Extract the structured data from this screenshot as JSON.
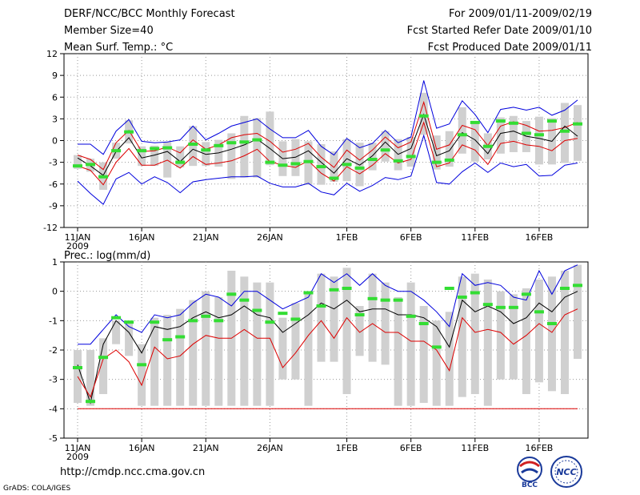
{
  "header": {
    "title": "DERF/NCC/BCC Monthly Forecast",
    "member_size": "Member Size=40",
    "variable": "Mean Surf. Temp.: °C",
    "period": "For 2009/01/11-2009/02/19",
    "fcst_started": "Fcst Started Refer Date 2009/01/10",
    "fcst_produced": "Fcst Produced Date 2009/01/11"
  },
  "footer": {
    "url": "http://cmdp.ncc.cma.gov.cn",
    "credit": "GrADS: COLA/IGES"
  },
  "logos": {
    "bcc": "BCC",
    "ncc": "NCC"
  },
  "colors": {
    "box": "#d0d0d0",
    "median": "#000000",
    "upper": "#0000dd",
    "lower": "#dd0000",
    "observed": "#33dd33",
    "grid": "#999999"
  },
  "chart_data": [
    {
      "type": "line",
      "title": "Mean Surf. Temp.: °C",
      "ylim": [
        -12,
        12
      ],
      "yticks": [
        -12,
        -9,
        -6,
        -3,
        0,
        3,
        6,
        9,
        12
      ],
      "xticks": [
        "11JAN",
        "16JAN",
        "21JAN",
        "26JAN",
        "1FEB",
        "6FEB",
        "11FEB",
        "16FEB"
      ],
      "xticks_day": [
        0,
        5,
        10,
        15,
        21,
        26,
        31,
        36
      ],
      "year_label": "2009",
      "days": 40,
      "series": [
        {
          "name": "upper",
          "values": [
            -0.5,
            -0.5,
            -1.9,
            1.3,
            2.9,
            -0.1,
            -0.3,
            -0.2,
            0.1,
            2.0,
            0.1,
            1.0,
            2.0,
            2.5,
            3.0,
            1.6,
            0.4,
            0.4,
            1.4,
            -0.8,
            -2.0,
            0.3,
            -1.0,
            -0.4,
            1.4,
            -0.3,
            0.5,
            8.3,
            1.7,
            2.3,
            5.5,
            3.6,
            1.1,
            4.3,
            4.6,
            4.2,
            4.6,
            3.5,
            4.2,
            5.6
          ]
        },
        {
          "name": "upper_mid",
          "values": [
            -2.0,
            -2.6,
            -4.0,
            -0.3,
            1.4,
            -1.5,
            -1.4,
            -0.9,
            -1.7,
            0.1,
            -1.2,
            -0.6,
            0.4,
            0.8,
            1.0,
            -0.1,
            -1.6,
            -1.2,
            -0.4,
            -2.3,
            -3.7,
            -1.3,
            -2.7,
            -1.3,
            0.5,
            -1.0,
            -0.2,
            5.3,
            -1.2,
            -0.6,
            2.1,
            1.5,
            -0.7,
            2.0,
            2.6,
            2.1,
            1.3,
            1.4,
            1.8,
            2.5
          ]
        },
        {
          "name": "median",
          "values": [
            -2.4,
            -3.5,
            -4.8,
            -1.5,
            0.4,
            -2.4,
            -2.0,
            -1.5,
            -2.9,
            -1.2,
            -1.9,
            -1.7,
            -1.2,
            -0.6,
            0.2,
            -1.1,
            -2.5,
            -2.3,
            -1.4,
            -3.0,
            -4.5,
            -2.5,
            -3.4,
            -2.1,
            -0.2,
            -1.9,
            -1.1,
            3.6,
            -2.1,
            -1.4,
            1.1,
            0.1,
            -1.8,
            1.0,
            1.3,
            0.6,
            0.3,
            -0.1,
            2.0,
            0.6
          ]
        },
        {
          "name": "lower_mid",
          "values": [
            -3.5,
            -4.1,
            -6.1,
            -3.0,
            -1.1,
            -3.4,
            -3.4,
            -2.7,
            -3.8,
            -2.2,
            -3.3,
            -3.1,
            -2.8,
            -2.1,
            -1.2,
            -2.9,
            -3.4,
            -3.7,
            -2.8,
            -4.5,
            -5.6,
            -3.6,
            -4.6,
            -3.4,
            -1.8,
            -3.1,
            -2.6,
            2.5,
            -3.6,
            -3.1,
            -0.6,
            -1.3,
            -3.3,
            -0.4,
            -0.1,
            -0.6,
            -0.8,
            -1.4,
            0.0,
            0.3
          ]
        },
        {
          "name": "lower",
          "values": [
            -5.6,
            -7.3,
            -8.8,
            -5.3,
            -4.4,
            -6.0,
            -5.0,
            -5.8,
            -7.2,
            -5.7,
            -5.4,
            -5.2,
            -5.0,
            -5.0,
            -4.9,
            -5.9,
            -6.4,
            -6.4,
            -5.9,
            -7.1,
            -7.5,
            -5.9,
            -7.0,
            -6.2,
            -5.1,
            -5.4,
            -4.9,
            0.7,
            -5.8,
            -6.0,
            -4.3,
            -3.1,
            -4.4,
            -3.1,
            -3.6,
            -3.3,
            -4.9,
            -4.8,
            -3.4,
            -3.1
          ]
        },
        {
          "name": "observed",
          "values": [
            -3.5,
            -3.3,
            -5.0,
            -1.4,
            1.2,
            -1.4,
            -1.1,
            -1.0,
            -3.0,
            -0.5,
            -1.3,
            -0.7,
            -0.3,
            -0.2,
            0.1,
            -3.0,
            -3.4,
            -3.2,
            -2.9,
            -3.6,
            -5.2,
            -3.3,
            -3.8,
            -2.6,
            -1.3,
            -2.8,
            -2.2,
            3.4,
            -3.0,
            -2.7,
            0.8,
            2.5,
            -0.8,
            2.7,
            2.4,
            1.0,
            0.8,
            2.7,
            1.3,
            2.3
          ]
        },
        {
          "name": "box_top",
          "values": [
            -2.0,
            -2.5,
            -3.0,
            -0.3,
            2.8,
            -0.8,
            -0.7,
            -0.2,
            -0.8,
            2.0,
            -0.2,
            0.1,
            1.0,
            3.4,
            3.1,
            4.0,
            -0.1,
            0.2,
            -0.1,
            -0.5,
            -1.5,
            0.2,
            -0.3,
            -0.3,
            1.3,
            0.2,
            0.5,
            6.6,
            0.7,
            1.3,
            4.6,
            2.6,
            1.0,
            3.2,
            3.4,
            2.7,
            3.3,
            3.1,
            5.2,
            4.9
          ]
        },
        {
          "name": "box_bottom",
          "values": [
            -3.9,
            -4.3,
            -6.8,
            -2.5,
            -0.4,
            -3.5,
            -3.5,
            -5.1,
            -3.7,
            -3.5,
            -3.5,
            -3.6,
            -5.3,
            -5.1,
            -5.1,
            -3.4,
            -4.9,
            -4.9,
            -6.1,
            -6.1,
            -5.7,
            -5.6,
            -6.3,
            -4.1,
            -2.9,
            -4.1,
            -3.6,
            0.8,
            -4.0,
            -3.6,
            -1.8,
            -2.9,
            -2.6,
            -1.8,
            -1.6,
            -1.6,
            -3.3,
            -3.3,
            -3.1,
            -2.8
          ]
        }
      ]
    },
    {
      "type": "line",
      "title": "Prec.: log(mm/d)",
      "ylim": [
        -5,
        1
      ],
      "yticks": [
        -5,
        -4,
        -3,
        -2,
        -1,
        0,
        1
      ],
      "xticks": [
        "11JAN",
        "16JAN",
        "21JAN",
        "26JAN",
        "1FEB",
        "6FEB",
        "11FEB",
        "16FEB"
      ],
      "xticks_day": [
        0,
        5,
        10,
        15,
        21,
        26,
        31,
        36
      ],
      "year_label": "2009",
      "days": 40,
      "series": [
        {
          "name": "upper",
          "values": [
            -1.8,
            -1.8,
            -1.3,
            -0.8,
            -1.2,
            -1.4,
            -0.8,
            -0.9,
            -0.8,
            -0.4,
            -0.1,
            -0.2,
            -0.5,
            0.0,
            0.0,
            -0.3,
            -0.6,
            -0.4,
            -0.2,
            0.6,
            0.3,
            0.6,
            0.2,
            0.6,
            0.2,
            0.0,
            0.0,
            -0.3,
            -0.7,
            -1.2,
            0.6,
            0.2,
            0.3,
            0.2,
            -0.2,
            -0.3,
            0.7,
            -0.1,
            0.7,
            0.9
          ]
        },
        {
          "name": "median",
          "values": [
            -2.5,
            -3.8,
            -1.8,
            -1.0,
            -1.4,
            -2.1,
            -1.2,
            -1.3,
            -1.2,
            -0.9,
            -0.7,
            -0.9,
            -0.8,
            -0.5,
            -0.8,
            -0.9,
            -1.4,
            -1.1,
            -0.8,
            -0.4,
            -0.6,
            -0.3,
            -0.7,
            -0.6,
            -0.6,
            -0.8,
            -0.8,
            -0.9,
            -1.2,
            -1.9,
            -0.3,
            -0.7,
            -0.5,
            -0.7,
            -1.1,
            -0.9,
            -0.4,
            -0.7,
            -0.2,
            0.0
          ]
        },
        {
          "name": "lower",
          "values": [
            -2.9,
            -3.6,
            -2.3,
            -2.0,
            -2.4,
            -3.2,
            -1.9,
            -2.3,
            -2.2,
            -1.8,
            -1.5,
            -1.6,
            -1.6,
            -1.3,
            -1.6,
            -1.6,
            -2.6,
            -2.1,
            -1.5,
            -1.0,
            -1.6,
            -0.9,
            -1.4,
            -1.1,
            -1.4,
            -1.4,
            -1.7,
            -1.7,
            -2.0,
            -2.7,
            -0.9,
            -1.4,
            -1.3,
            -1.4,
            -1.8,
            -1.5,
            -1.1,
            -1.4,
            -0.8,
            -0.6
          ]
        },
        {
          "name": "floor",
          "values": [
            -4.0,
            -4.0,
            -4.0,
            -4.0,
            -4.0,
            -4.0,
            -4.0,
            -4.0,
            -4.0,
            -4.0,
            -4.0,
            -4.0,
            -4.0,
            -4.0,
            -4.0,
            -4.0,
            -4.0,
            -4.0,
            -4.0,
            -4.0,
            -4.0,
            -4.0,
            -4.0,
            -4.0,
            -4.0,
            -4.0,
            -4.0,
            -4.0,
            -4.0,
            -4.0,
            -4.0,
            -4.0,
            -4.0,
            -4.0,
            -4.0,
            -4.0,
            -4.0,
            -4.0,
            -4.0,
            -4.0
          ]
        },
        {
          "name": "observed",
          "values": [
            -2.6,
            -3.75,
            -2.25,
            -0.9,
            -1.05,
            -2.5,
            -1.05,
            -1.65,
            -1.55,
            -1.0,
            -0.85,
            -1.0,
            -0.1,
            -0.3,
            -0.65,
            -1.05,
            -0.75,
            -0.95,
            -0.05,
            -0.5,
            0.05,
            0.1,
            -0.8,
            -0.25,
            -0.3,
            -0.3,
            -0.85,
            -1.1,
            -1.9,
            0.1,
            -0.2,
            -0.05,
            -0.45,
            -0.55,
            -0.55,
            -0.1,
            -0.7,
            -1.1,
            0.1,
            0.2
          ]
        },
        {
          "name": "box_top",
          "values": [
            -2.0,
            -2.0,
            -1.6,
            -1.0,
            -1.0,
            -1.8,
            -0.9,
            -0.8,
            -0.6,
            -0.3,
            0.0,
            -0.2,
            0.7,
            0.5,
            0.3,
            0.3,
            -0.9,
            -0.4,
            -0.1,
            0.6,
            0.5,
            0.8,
            -0.5,
            0.6,
            0.3,
            -0.2,
            0.3,
            -0.5,
            -1.0,
            -0.7,
            0.5,
            0.6,
            0.4,
            0.0,
            -0.1,
            0.1,
            0.4,
            0.5,
            0.7,
            0.9
          ]
        },
        {
          "name": "box_bottom",
          "values": [
            -3.8,
            -3.9,
            -3.5,
            -1.8,
            -2.2,
            -3.9,
            -3.9,
            -3.9,
            -3.9,
            -3.9,
            -3.9,
            -3.9,
            -3.9,
            -3.9,
            -3.9,
            -3.9,
            -3.0,
            -3.0,
            -3.9,
            -2.4,
            -2.4,
            -3.5,
            -2.2,
            -2.4,
            -2.5,
            -3.9,
            -3.9,
            -3.8,
            -3.9,
            -3.9,
            -3.6,
            -3.5,
            -3.9,
            -3.0,
            -3.0,
            -3.5,
            -3.1,
            -3.4,
            -3.5,
            -2.3
          ]
        }
      ]
    }
  ]
}
